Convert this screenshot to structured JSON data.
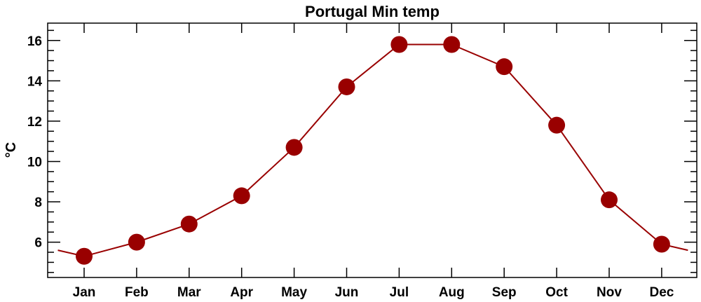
{
  "chart_data": {
    "type": "line",
    "title": "Portugal Min temp",
    "xlabel": "",
    "ylabel": "°C",
    "categories": [
      "Jan",
      "Feb",
      "Mar",
      "Apr",
      "May",
      "Jun",
      "Jul",
      "Aug",
      "Sep",
      "Oct",
      "Nov",
      "Dec"
    ],
    "series": [
      {
        "name": "Min temp",
        "values": [
          5.3,
          6.0,
          6.9,
          8.3,
          10.7,
          13.7,
          15.8,
          15.8,
          14.7,
          11.8,
          8.1,
          5.9
        ],
        "color": "#990000"
      }
    ],
    "edge_values": {
      "start": 5.6,
      "end": 5.6
    },
    "ylim": [
      4.25,
      16.86
    ],
    "yticks": [
      6,
      8,
      10,
      12,
      14,
      16
    ],
    "ytick_labels": [
      "6",
      "8",
      "10",
      "12",
      "14",
      "16"
    ],
    "grid": false,
    "legend": "none"
  }
}
